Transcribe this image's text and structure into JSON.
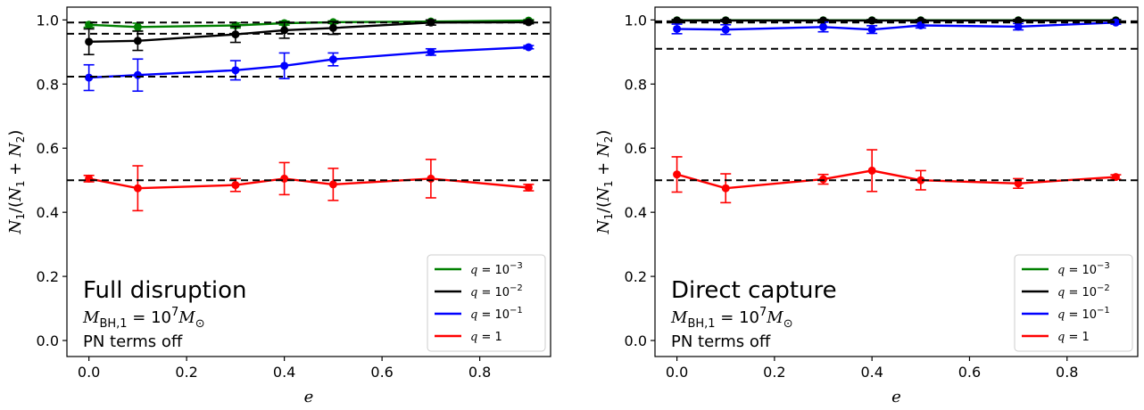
{
  "chart_data": [
    {
      "type": "line",
      "xlabel": "e",
      "ylabel": "N1/(N1 + N2)",
      "xlim": [
        -0.045,
        0.945
      ],
      "ylim": [
        -0.05,
        1.04
      ],
      "xticks": [
        "0.0",
        "0.2",
        "0.4",
        "0.6",
        "0.8"
      ],
      "yticks": [
        "0.0",
        "0.2",
        "0.4",
        "0.6",
        "0.8",
        "1.0"
      ],
      "annotation": {
        "title": "Full disruption",
        "mass_line": "M_BH,1 = 10^7 M_⊙",
        "pn_line": "PN terms off"
      },
      "legend_position": "lower-right",
      "hlines": [
        0.992,
        0.957,
        0.823,
        0.5
      ],
      "series": [
        {
          "name": "q = 10^-3",
          "color": "#008000",
          "x": [
            0,
            0.1,
            0.3,
            0.4,
            0.5,
            0.7,
            0.9
          ],
          "y": [
            0.985,
            0.978,
            0.983,
            0.99,
            0.993,
            0.995,
            0.998
          ],
          "err": [
            0.008,
            0.012,
            0.008,
            0.006,
            0.004,
            0.004,
            0.003
          ]
        },
        {
          "name": "q = 10^-2",
          "color": "#000000",
          "x": [
            0,
            0.1,
            0.3,
            0.4,
            0.5,
            0.7,
            0.9
          ],
          "y": [
            0.932,
            0.935,
            0.955,
            0.968,
            0.975,
            0.992,
            0.993
          ],
          "err": [
            0.04,
            0.03,
            0.025,
            0.025,
            0.02,
            0.008,
            0.005
          ]
        },
        {
          "name": "q = 10^-1",
          "color": "#0000ff",
          "x": [
            0,
            0.1,
            0.3,
            0.4,
            0.5,
            0.7,
            0.9
          ],
          "y": [
            0.82,
            0.828,
            0.843,
            0.857,
            0.877,
            0.9,
            0.915
          ],
          "err": [
            0.04,
            0.05,
            0.03,
            0.04,
            0.02,
            0.01,
            0.005
          ]
        },
        {
          "name": "q = 1",
          "color": "#ff0000",
          "x": [
            0,
            0.1,
            0.3,
            0.4,
            0.5,
            0.7,
            0.9
          ],
          "y": [
            0.505,
            0.475,
            0.485,
            0.505,
            0.487,
            0.505,
            0.477
          ],
          "err": [
            0.01,
            0.07,
            0.02,
            0.05,
            0.05,
            0.06,
            0.01
          ]
        }
      ]
    },
    {
      "type": "line",
      "xlabel": "e",
      "ylabel": "N1/(N1 + N2)",
      "xlim": [
        -0.045,
        0.945
      ],
      "ylim": [
        -0.05,
        1.04
      ],
      "xticks": [
        "0.0",
        "0.2",
        "0.4",
        "0.6",
        "0.8"
      ],
      "yticks": [
        "0.0",
        "0.2",
        "0.4",
        "0.6",
        "0.8",
        "1.0"
      ],
      "annotation": {
        "title": "Direct capture",
        "mass_line": "M_BH,1 = 10^7 M_⊙",
        "pn_line": "PN terms off"
      },
      "legend_position": "lower-right",
      "hlines": [
        0.996,
        0.992,
        0.91,
        0.5
      ],
      "series": [
        {
          "name": "q = 10^-3",
          "color": "#008000",
          "x": [
            0,
            0.1,
            0.3,
            0.4,
            0.5,
            0.7,
            0.9
          ],
          "y": [
            0.999,
            0.999,
            0.999,
            0.999,
            0.999,
            0.999,
            0.999
          ],
          "err": [
            0.002,
            0.002,
            0.002,
            0.002,
            0.002,
            0.002,
            0.002
          ]
        },
        {
          "name": "q = 10^-2",
          "color": "#000000",
          "x": [
            0,
            0.1,
            0.3,
            0.4,
            0.5,
            0.7,
            0.9
          ],
          "y": [
            0.998,
            0.998,
            0.998,
            0.998,
            0.998,
            0.998,
            0.998
          ],
          "err": [
            0.003,
            0.003,
            0.003,
            0.003,
            0.003,
            0.003,
            0.003
          ]
        },
        {
          "name": "q = 10^-1",
          "color": "#0000ff",
          "x": [
            0,
            0.1,
            0.3,
            0.4,
            0.5,
            0.7,
            0.9
          ],
          "y": [
            0.972,
            0.97,
            0.978,
            0.97,
            0.983,
            0.979,
            0.992
          ],
          "err": [
            0.015,
            0.015,
            0.015,
            0.012,
            0.008,
            0.01,
            0.005
          ]
        },
        {
          "name": "q = 1",
          "color": "#ff0000",
          "x": [
            0,
            0.1,
            0.3,
            0.4,
            0.5,
            0.7,
            0.9
          ],
          "y": [
            0.518,
            0.475,
            0.503,
            0.53,
            0.5,
            0.49,
            0.51
          ],
          "err": [
            0.055,
            0.045,
            0.015,
            0.065,
            0.03,
            0.015,
            0.007
          ]
        }
      ]
    }
  ]
}
